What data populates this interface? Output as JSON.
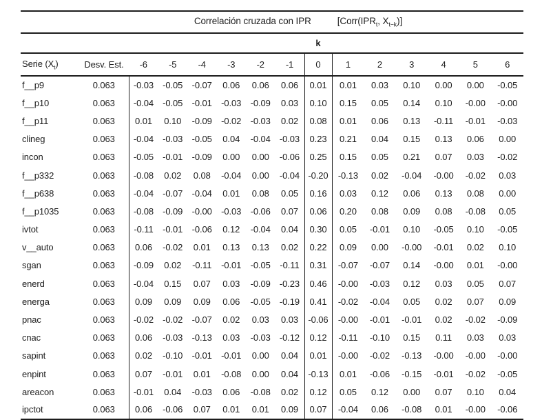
{
  "header": {
    "title": "Correlación cruzada con IPR",
    "formula": {
      "p1": "[Corr(IPR",
      "sub1": "t",
      "p2": ", X",
      "sub2": "t−k",
      "p3": ")]"
    },
    "k_label": "k"
  },
  "columns": {
    "serie": {
      "prefix": "Serie (X",
      "sub": "t",
      "suffix": ")"
    },
    "desv": "Desv. Est.",
    "lags": [
      "-6",
      "-5",
      "-4",
      "-3",
      "-2",
      "-1",
      "0",
      "1",
      "2",
      "3",
      "4",
      "5",
      "6"
    ]
  },
  "rows": [
    {
      "name": "f__p9",
      "sd": "0.063",
      "values": [
        "-0.03",
        "-0.05",
        "-0.07",
        "0.06",
        "0.06",
        "0.06",
        "0.01",
        "0.01",
        "0.03",
        "0.10",
        "0.00",
        "0.00",
        "-0.05"
      ]
    },
    {
      "name": "f__p10",
      "sd": "0.063",
      "values": [
        "-0.04",
        "-0.05",
        "-0.01",
        "-0.03",
        "-0.09",
        "0.03",
        "0.10",
        "0.15",
        "0.05",
        "0.14",
        "0.10",
        "-0.00",
        "-0.00"
      ]
    },
    {
      "name": "f__p11",
      "sd": "0.063",
      "values": [
        "0.01",
        "0.10",
        "-0.09",
        "-0.02",
        "-0.03",
        "0.02",
        "0.08",
        "0.01",
        "0.06",
        "0.13",
        "-0.11",
        "-0.01",
        "-0.03"
      ]
    },
    {
      "name": "clineg",
      "sd": "0.063",
      "values": [
        "-0.04",
        "-0.03",
        "-0.05",
        "0.04",
        "-0.04",
        "-0.03",
        "0.23",
        "0.21",
        "0.04",
        "0.15",
        "0.13",
        "0.06",
        "0.00"
      ]
    },
    {
      "name": "incon",
      "sd": "0.063",
      "values": [
        "-0.05",
        "-0.01",
        "-0.09",
        "0.00",
        "0.00",
        "-0.06",
        "0.25",
        "0.15",
        "0.05",
        "0.21",
        "0.07",
        "0.03",
        "-0.02"
      ]
    },
    {
      "name": "f__p332",
      "sd": "0.063",
      "values": [
        "-0.08",
        "0.02",
        "0.08",
        "-0.04",
        "0.00",
        "-0.04",
        "-0.20",
        "-0.13",
        "0.02",
        "-0.04",
        "-0.00",
        "-0.02",
        "0.03"
      ]
    },
    {
      "name": "f__p638",
      "sd": "0.063",
      "values": [
        "-0.04",
        "-0.07",
        "-0.04",
        "0.01",
        "0.08",
        "0.05",
        "0.16",
        "0.03",
        "0.12",
        "0.06",
        "0.13",
        "0.08",
        "0.00"
      ]
    },
    {
      "name": "f__p1035",
      "sd": "0.063",
      "values": [
        "-0.08",
        "-0.09",
        "-0.00",
        "-0.03",
        "-0.06",
        "0.07",
        "0.06",
        "0.20",
        "0.08",
        "0.09",
        "0.08",
        "-0.08",
        "0.05"
      ]
    },
    {
      "name": "ivtot",
      "sd": "0.063",
      "values": [
        "-0.11",
        "-0.01",
        "-0.06",
        "0.12",
        "-0.04",
        "0.04",
        "0.30",
        "0.05",
        "-0.01",
        "0.10",
        "-0.05",
        "0.10",
        "-0.05"
      ]
    },
    {
      "name": "v__auto",
      "sd": "0.063",
      "values": [
        "0.06",
        "-0.02",
        "0.01",
        "0.13",
        "0.13",
        "0.02",
        "0.22",
        "0.09",
        "0.00",
        "-0.00",
        "-0.01",
        "0.02",
        "0.10"
      ]
    },
    {
      "name": "sgan",
      "sd": "0.063",
      "values": [
        "-0.09",
        "0.02",
        "-0.11",
        "-0.01",
        "-0.05",
        "-0.11",
        "0.31",
        "-0.07",
        "-0.07",
        "0.14",
        "-0.00",
        "0.01",
        "-0.00"
      ]
    },
    {
      "name": "enerd",
      "sd": "0.063",
      "values": [
        "-0.04",
        "0.15",
        "0.07",
        "0.03",
        "-0.09",
        "-0.23",
        "0.46",
        "-0.00",
        "-0.03",
        "0.12",
        "0.03",
        "0.05",
        "0.07"
      ]
    },
    {
      "name": "energa",
      "sd": "0.063",
      "values": [
        "0.09",
        "0.09",
        "0.09",
        "0.06",
        "-0.05",
        "-0.19",
        "0.41",
        "-0.02",
        "-0.04",
        "0.05",
        "0.02",
        "0.07",
        "0.09"
      ]
    },
    {
      "name": "pnac",
      "sd": "0.063",
      "values": [
        "-0.02",
        "-0.02",
        "-0.07",
        "0.02",
        "0.03",
        "0.03",
        "-0.06",
        "-0.00",
        "-0.01",
        "-0.01",
        "0.02",
        "-0.02",
        "-0.09"
      ]
    },
    {
      "name": "cnac",
      "sd": "0.063",
      "values": [
        "0.06",
        "-0.03",
        "-0.13",
        "0.03",
        "-0.03",
        "-0.12",
        "0.12",
        "-0.11",
        "-0.10",
        "0.15",
        "0.11",
        "0.03",
        "0.03"
      ]
    },
    {
      "name": "sapint",
      "sd": "0.063",
      "values": [
        "0.02",
        "-0.10",
        "-0.01",
        "-0.01",
        "0.00",
        "0.04",
        "0.01",
        "-0.00",
        "-0.02",
        "-0.13",
        "-0.00",
        "-0.00",
        "-0.00"
      ]
    },
    {
      "name": "enpint",
      "sd": "0.063",
      "values": [
        "0.07",
        "-0.01",
        "0.01",
        "-0.08",
        "0.00",
        "0.04",
        "-0.13",
        "0.01",
        "-0.06",
        "-0.15",
        "-0.01",
        "-0.02",
        "-0.05"
      ]
    },
    {
      "name": "areacon",
      "sd": "0.063",
      "values": [
        "-0.01",
        "0.04",
        "-0.03",
        "0.06",
        "-0.08",
        "0.02",
        "0.12",
        "0.05",
        "0.12",
        "0.00",
        "0.07",
        "0.10",
        "0.04"
      ]
    },
    {
      "name": "ipctot",
      "sd": "0.063",
      "values": [
        "0.06",
        "-0.06",
        "0.07",
        "0.01",
        "0.01",
        "0.09",
        "0.07",
        "-0.04",
        "0.06",
        "-0.08",
        "0.01",
        "-0.00",
        "-0.06"
      ]
    }
  ]
}
